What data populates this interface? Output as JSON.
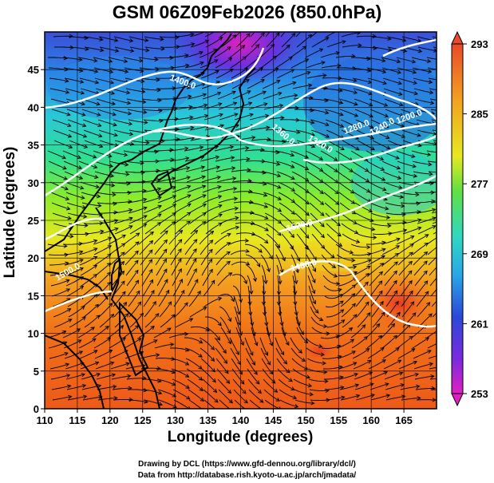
{
  "title": "GSM 06Z09Feb2026 (850.0hPa)",
  "axes": {
    "xlabel": "Longitude (degrees)",
    "ylabel": "Latitude  (degrees)",
    "xlim": [
      110,
      170
    ],
    "ylim": [
      0,
      50
    ],
    "xticks": [
      "110",
      "115",
      "120",
      "125",
      "130",
      "135",
      "140",
      "145",
      "150",
      "155",
      "160",
      "165"
    ],
    "yticks": [
      "0",
      "5",
      "10",
      "15",
      "20",
      "25",
      "30",
      "35",
      "40",
      "45"
    ]
  },
  "colorbar": {
    "ticks": [
      "293",
      "285",
      "277",
      "269",
      "261",
      "253"
    ]
  },
  "contour_labels": [
    "1400.0",
    "1360.0",
    "1320.0",
    "1280.0",
    "1240.0",
    "1200.0",
    "1520.0",
    "1480.0",
    "1500.0"
  ],
  "credits": {
    "line1": "Drawing by DCL (https://www.gfd-dennou.org/library/dcl/)",
    "line2": "Data from http://database.rish.kyoto-u.ac.jp/arch/jmadata/"
  }
}
